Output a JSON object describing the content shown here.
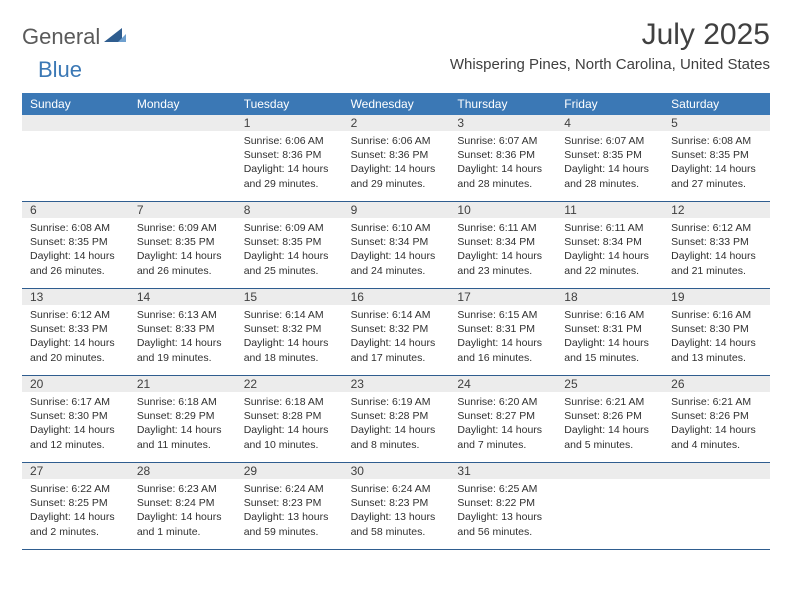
{
  "logo": {
    "text1": "General",
    "text2": "Blue",
    "tri_color": "#2f5d8f"
  },
  "title": "July 2025",
  "location": "Whispering Pines, North Carolina, United States",
  "colors": {
    "header_bg": "#3b78b5",
    "header_text": "#ffffff",
    "daynum_bg": "#ececec",
    "border": "#2f5d8f",
    "body_text": "#303030"
  },
  "day_names": [
    "Sunday",
    "Monday",
    "Tuesday",
    "Wednesday",
    "Thursday",
    "Friday",
    "Saturday"
  ],
  "weeks": [
    [
      {
        "n": "",
        "lines": []
      },
      {
        "n": "",
        "lines": []
      },
      {
        "n": "1",
        "lines": [
          "Sunrise: 6:06 AM",
          "Sunset: 8:36 PM",
          "Daylight: 14 hours",
          "and 29 minutes."
        ]
      },
      {
        "n": "2",
        "lines": [
          "Sunrise: 6:06 AM",
          "Sunset: 8:36 PM",
          "Daylight: 14 hours",
          "and 29 minutes."
        ]
      },
      {
        "n": "3",
        "lines": [
          "Sunrise: 6:07 AM",
          "Sunset: 8:36 PM",
          "Daylight: 14 hours",
          "and 28 minutes."
        ]
      },
      {
        "n": "4",
        "lines": [
          "Sunrise: 6:07 AM",
          "Sunset: 8:35 PM",
          "Daylight: 14 hours",
          "and 28 minutes."
        ]
      },
      {
        "n": "5",
        "lines": [
          "Sunrise: 6:08 AM",
          "Sunset: 8:35 PM",
          "Daylight: 14 hours",
          "and 27 minutes."
        ]
      }
    ],
    [
      {
        "n": "6",
        "lines": [
          "Sunrise: 6:08 AM",
          "Sunset: 8:35 PM",
          "Daylight: 14 hours",
          "and 26 minutes."
        ]
      },
      {
        "n": "7",
        "lines": [
          "Sunrise: 6:09 AM",
          "Sunset: 8:35 PM",
          "Daylight: 14 hours",
          "and 26 minutes."
        ]
      },
      {
        "n": "8",
        "lines": [
          "Sunrise: 6:09 AM",
          "Sunset: 8:35 PM",
          "Daylight: 14 hours",
          "and 25 minutes."
        ]
      },
      {
        "n": "9",
        "lines": [
          "Sunrise: 6:10 AM",
          "Sunset: 8:34 PM",
          "Daylight: 14 hours",
          "and 24 minutes."
        ]
      },
      {
        "n": "10",
        "lines": [
          "Sunrise: 6:11 AM",
          "Sunset: 8:34 PM",
          "Daylight: 14 hours",
          "and 23 minutes."
        ]
      },
      {
        "n": "11",
        "lines": [
          "Sunrise: 6:11 AM",
          "Sunset: 8:34 PM",
          "Daylight: 14 hours",
          "and 22 minutes."
        ]
      },
      {
        "n": "12",
        "lines": [
          "Sunrise: 6:12 AM",
          "Sunset: 8:33 PM",
          "Daylight: 14 hours",
          "and 21 minutes."
        ]
      }
    ],
    [
      {
        "n": "13",
        "lines": [
          "Sunrise: 6:12 AM",
          "Sunset: 8:33 PM",
          "Daylight: 14 hours",
          "and 20 minutes."
        ]
      },
      {
        "n": "14",
        "lines": [
          "Sunrise: 6:13 AM",
          "Sunset: 8:33 PM",
          "Daylight: 14 hours",
          "and 19 minutes."
        ]
      },
      {
        "n": "15",
        "lines": [
          "Sunrise: 6:14 AM",
          "Sunset: 8:32 PM",
          "Daylight: 14 hours",
          "and 18 minutes."
        ]
      },
      {
        "n": "16",
        "lines": [
          "Sunrise: 6:14 AM",
          "Sunset: 8:32 PM",
          "Daylight: 14 hours",
          "and 17 minutes."
        ]
      },
      {
        "n": "17",
        "lines": [
          "Sunrise: 6:15 AM",
          "Sunset: 8:31 PM",
          "Daylight: 14 hours",
          "and 16 minutes."
        ]
      },
      {
        "n": "18",
        "lines": [
          "Sunrise: 6:16 AM",
          "Sunset: 8:31 PM",
          "Daylight: 14 hours",
          "and 15 minutes."
        ]
      },
      {
        "n": "19",
        "lines": [
          "Sunrise: 6:16 AM",
          "Sunset: 8:30 PM",
          "Daylight: 14 hours",
          "and 13 minutes."
        ]
      }
    ],
    [
      {
        "n": "20",
        "lines": [
          "Sunrise: 6:17 AM",
          "Sunset: 8:30 PM",
          "Daylight: 14 hours",
          "and 12 minutes."
        ]
      },
      {
        "n": "21",
        "lines": [
          "Sunrise: 6:18 AM",
          "Sunset: 8:29 PM",
          "Daylight: 14 hours",
          "and 11 minutes."
        ]
      },
      {
        "n": "22",
        "lines": [
          "Sunrise: 6:18 AM",
          "Sunset: 8:28 PM",
          "Daylight: 14 hours",
          "and 10 minutes."
        ]
      },
      {
        "n": "23",
        "lines": [
          "Sunrise: 6:19 AM",
          "Sunset: 8:28 PM",
          "Daylight: 14 hours",
          "and 8 minutes."
        ]
      },
      {
        "n": "24",
        "lines": [
          "Sunrise: 6:20 AM",
          "Sunset: 8:27 PM",
          "Daylight: 14 hours",
          "and 7 minutes."
        ]
      },
      {
        "n": "25",
        "lines": [
          "Sunrise: 6:21 AM",
          "Sunset: 8:26 PM",
          "Daylight: 14 hours",
          "and 5 minutes."
        ]
      },
      {
        "n": "26",
        "lines": [
          "Sunrise: 6:21 AM",
          "Sunset: 8:26 PM",
          "Daylight: 14 hours",
          "and 4 minutes."
        ]
      }
    ],
    [
      {
        "n": "27",
        "lines": [
          "Sunrise: 6:22 AM",
          "Sunset: 8:25 PM",
          "Daylight: 14 hours",
          "and 2 minutes."
        ]
      },
      {
        "n": "28",
        "lines": [
          "Sunrise: 6:23 AM",
          "Sunset: 8:24 PM",
          "Daylight: 14 hours",
          "and 1 minute."
        ]
      },
      {
        "n": "29",
        "lines": [
          "Sunrise: 6:24 AM",
          "Sunset: 8:23 PM",
          "Daylight: 13 hours",
          "and 59 minutes."
        ]
      },
      {
        "n": "30",
        "lines": [
          "Sunrise: 6:24 AM",
          "Sunset: 8:23 PM",
          "Daylight: 13 hours",
          "and 58 minutes."
        ]
      },
      {
        "n": "31",
        "lines": [
          "Sunrise: 6:25 AM",
          "Sunset: 8:22 PM",
          "Daylight: 13 hours",
          "and 56 minutes."
        ]
      },
      {
        "n": "",
        "lines": []
      },
      {
        "n": "",
        "lines": []
      }
    ]
  ]
}
